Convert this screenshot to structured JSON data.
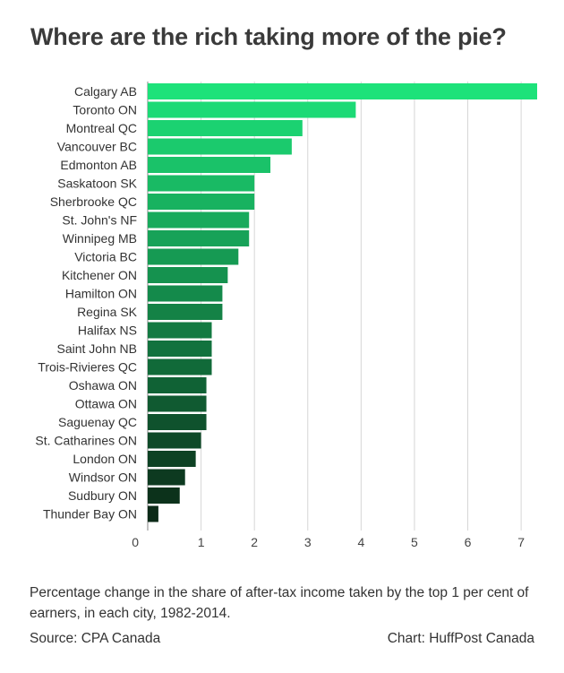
{
  "title": "Where are the rich taking more of the pie?",
  "caption": "Percentage change in the share of after-tax income taken by the top 1 per cent of earners, in each city, 1982-2014.",
  "source": "Source: CPA Canada",
  "credit": "Chart: HuffPost Canada",
  "chart_data": {
    "type": "bar",
    "orientation": "horizontal",
    "categories": [
      "Calgary AB",
      "Toronto ON",
      "Montreal QC",
      "Vancouver BC",
      "Edmonton AB",
      "Saskatoon SK",
      "Sherbrooke QC",
      "St. John's NF",
      "Winnipeg MB",
      "Victoria BC",
      "Kitchener ON",
      "Hamilton ON",
      "Regina SK",
      "Halifax NS",
      "Saint John NB",
      "Trois-Rivieres QC",
      "Oshawa ON",
      "Ottawa ON",
      "Saguenay QC",
      "St. Catharines ON",
      "London ON",
      "Windsor ON",
      "Sudbury ON",
      "Thunder Bay ON"
    ],
    "values": [
      7.3,
      3.9,
      2.9,
      2.7,
      2.3,
      2.0,
      2.0,
      1.9,
      1.9,
      1.7,
      1.5,
      1.4,
      1.4,
      1.2,
      1.2,
      1.2,
      1.1,
      1.1,
      1.1,
      1.0,
      0.9,
      0.7,
      0.6,
      0.2
    ],
    "xlim": [
      0,
      7.3
    ],
    "xticks": [
      0,
      1,
      2,
      3,
      4,
      5,
      6,
      7
    ],
    "grid": true,
    "color_start": "#1de27a",
    "color_end": "#0b2a17"
  }
}
